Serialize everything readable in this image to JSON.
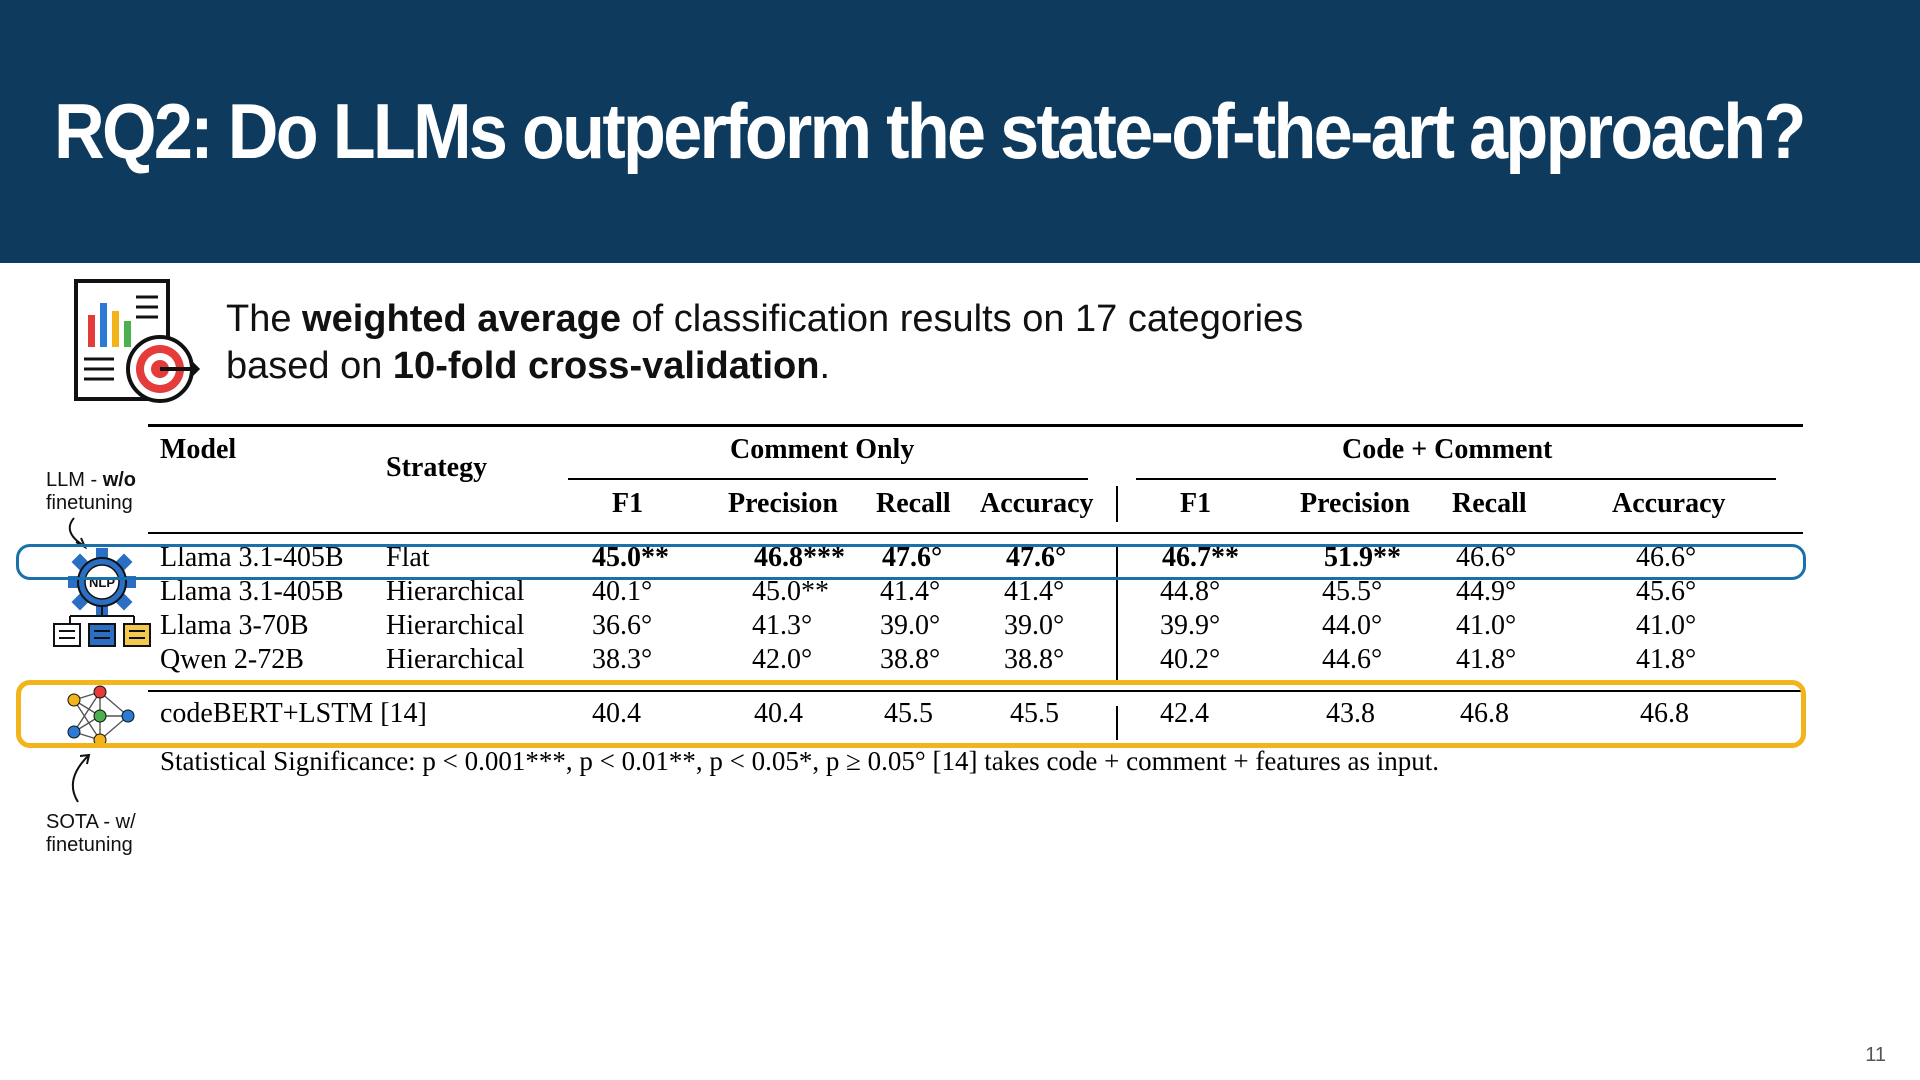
{
  "slide": {
    "title": "RQ2: Do LLMs outperform the state-of-the-art approach?",
    "subtitle_parts": {
      "p1": "The ",
      "b1": "weighted average",
      "p2": " of classification results on 17 categories",
      "p3": "based on ",
      "b2": "10-fold cross-validation",
      "p4": "."
    },
    "page_number": "11"
  },
  "annotations": {
    "llm_note_a": "LLM - ",
    "llm_note_b": "w/o",
    "llm_note_c": "finetuning",
    "sota_note_a": "SOTA - w/",
    "sota_note_b": "finetuning",
    "nlp_badge": "NLP"
  },
  "icons": [
    "report-target-icon",
    "nlp-gear-icon",
    "neural-network-icon"
  ],
  "colors": {
    "header_bg": "#0e3a5d",
    "highlight_blue": "#1b6faa",
    "highlight_orange": "#f2b31b"
  },
  "table": {
    "headers": {
      "model": "Model",
      "strategy": "Strategy",
      "group_comment": "Comment Only",
      "group_code": "Code + Comment",
      "f1": "F1",
      "precision": "Precision",
      "recall": "Recall",
      "accuracy": "Accuracy"
    },
    "rows": [
      {
        "model": "Llama 3.1-405B",
        "strategy": "Flat",
        "c_f1": "45.0**",
        "c_p": "46.8***",
        "c_r": "47.6°",
        "c_a": "47.6°",
        "k_f1": "46.7**",
        "k_p": "51.9**",
        "k_r": "46.6°",
        "k_a": "46.6°"
      },
      {
        "model": "Llama 3.1-405B",
        "strategy": "Hierarchical",
        "c_f1": "40.1°",
        "c_p": "45.0**",
        "c_r": "41.4°",
        "c_a": "41.4°",
        "k_f1": "44.8°",
        "k_p": "45.5°",
        "k_r": "44.9°",
        "k_a": "45.6°"
      },
      {
        "model": "Llama 3-70B",
        "strategy": "Hierarchical",
        "c_f1": "36.6°",
        "c_p": "41.3°",
        "c_r": "39.0°",
        "c_a": "39.0°",
        "k_f1": "39.9°",
        "k_p": "44.0°",
        "k_r": "41.0°",
        "k_a": "41.0°"
      },
      {
        "model": "Qwen 2-72B",
        "strategy": "Hierarchical",
        "c_f1": "38.3°",
        "c_p": "42.0°",
        "c_r": "38.8°",
        "c_a": "38.8°",
        "k_f1": "40.2°",
        "k_p": "44.6°",
        "k_r": "41.8°",
        "k_a": "41.8°"
      }
    ],
    "sota_row": {
      "model": "codeBERT+LSTM [14]",
      "c_f1": "40.4",
      "c_p": "40.4",
      "c_r": "45.5",
      "c_a": "45.5",
      "k_f1": "42.4",
      "k_p": "43.8",
      "k_r": "46.8",
      "k_a": "46.8"
    },
    "footnote": "Statistical Significance: p < 0.001***, p < 0.01**, p < 0.05*, p ≥ 0.05°  [14] takes code + comment + features as input."
  }
}
